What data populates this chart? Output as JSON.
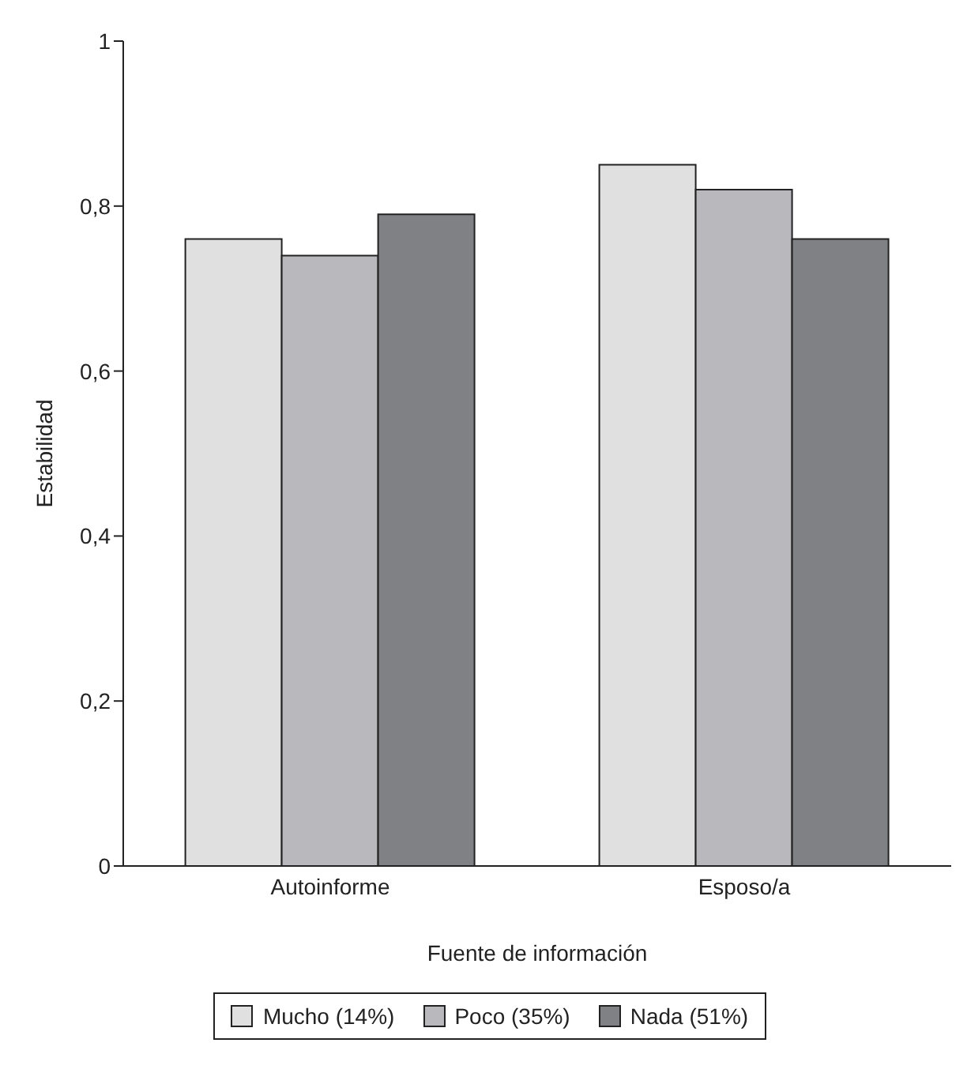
{
  "chart_data": {
    "type": "bar",
    "xlabel": "Fuente de información",
    "ylabel": "Estabilidad",
    "categories": [
      "Autoinforme",
      "Esposo/a"
    ],
    "series": [
      {
        "name": "Mucho (14%)",
        "color": "#e0e0e0",
        "values": [
          0.76,
          0.85
        ]
      },
      {
        "name": "Poco (35%)",
        "color": "#b9b9bd",
        "values": [
          0.74,
          0.82
        ]
      },
      {
        "name": "Nada (51%)",
        "color": "#808185",
        "values": [
          0.79,
          0.76
        ]
      }
    ],
    "ylim": [
      0,
      1
    ],
    "yticks": [
      0,
      {
        "value": 0.2,
        "label": "0,2"
      },
      {
        "value": 0.4,
        "label": "0,4"
      },
      {
        "value": 0.6,
        "label": "0,6"
      },
      {
        "value": 0.8,
        "label": "0,8"
      },
      1
    ],
    "grid": false,
    "legend": "bottom"
  }
}
